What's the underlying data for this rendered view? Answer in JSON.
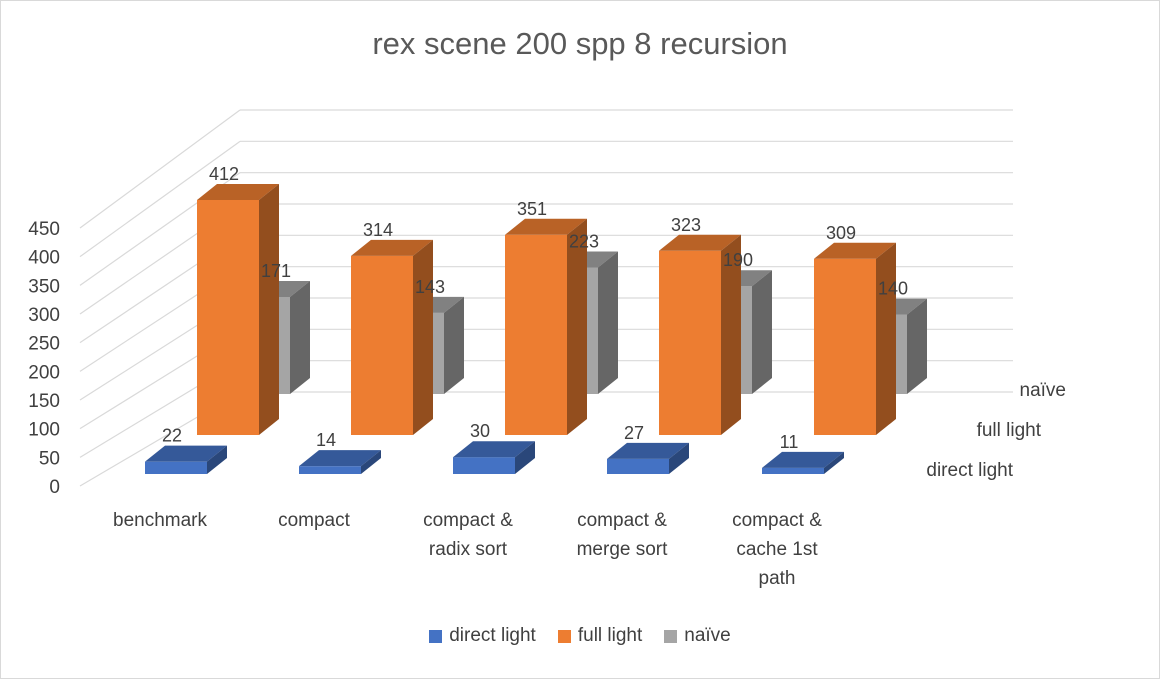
{
  "chart_data": {
    "type": "bar",
    "title": "rex scene 200 spp 8 recursion",
    "categories": [
      [
        "benchmark"
      ],
      [
        "compact"
      ],
      [
        "compact &",
        "radix sort"
      ],
      [
        "compact &",
        "merge sort"
      ],
      [
        "compact &",
        "cache 1st",
        "path"
      ]
    ],
    "series": [
      {
        "name": "direct light",
        "values": [
          22,
          14,
          30,
          27,
          11
        ],
        "color": "#4472c4"
      },
      {
        "name": "full light",
        "values": [
          412,
          314,
          351,
          323,
          309
        ],
        "color": "#ed7d31"
      },
      {
        "name": "naïve",
        "values": [
          171,
          143,
          223,
          190,
          140
        ],
        "color": "#a5a5a5"
      }
    ],
    "depth_labels": [
      "naïve",
      "full light",
      "direct light"
    ],
    "y_ticks": [
      "0",
      "50",
      "100",
      "150",
      "200",
      "250",
      "300",
      "350",
      "400",
      "450"
    ],
    "ylim": [
      0,
      450
    ],
    "legend_position": "bottom",
    "grid": true
  }
}
